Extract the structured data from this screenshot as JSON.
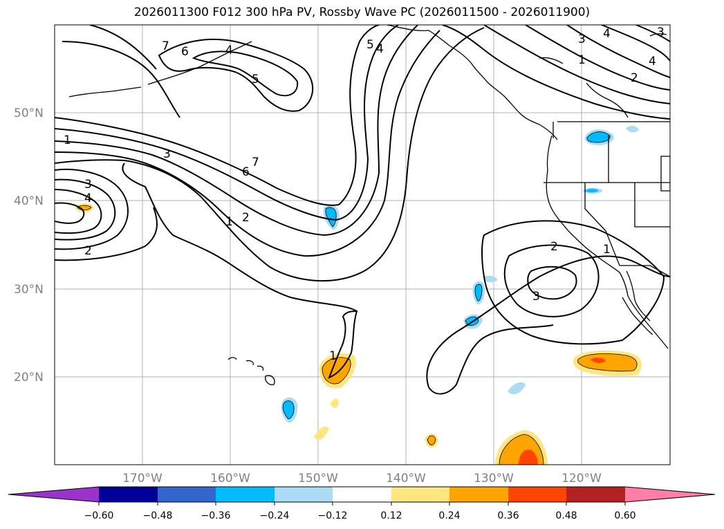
{
  "title": "2026011300 F012 300 hPa PV, Rossby Wave PC (2026011500 - 2026011900)",
  "map": {
    "lat_labels": [
      "50°N",
      "40°N",
      "30°N",
      "20°N"
    ],
    "lon_labels": [
      "170°W",
      "160°W",
      "150°W",
      "140°W",
      "130°W",
      "120°W"
    ],
    "contour_labels": [
      "7",
      "6",
      "4",
      "5",
      "5",
      "4",
      "3",
      "4",
      "3",
      "1",
      "2",
      "4",
      "1",
      "3",
      "7",
      "6",
      "1",
      "2",
      "3",
      "4",
      "2",
      "2",
      "1",
      "3",
      "1"
    ]
  },
  "colorbar": {
    "ticks": [
      "−0.60",
      "−0.48",
      "−0.36",
      "−0.24",
      "−0.12",
      "0.12",
      "0.24",
      "0.36",
      "0.48",
      "0.60"
    ],
    "colors": [
      "#9933cc",
      "#000099",
      "#3366cc",
      "#00bbff",
      "#aaddf5",
      "#ffffff",
      "#ffe680",
      "#ffa500",
      "#ff4500",
      "#b22222",
      "#ff7fa6"
    ]
  }
}
